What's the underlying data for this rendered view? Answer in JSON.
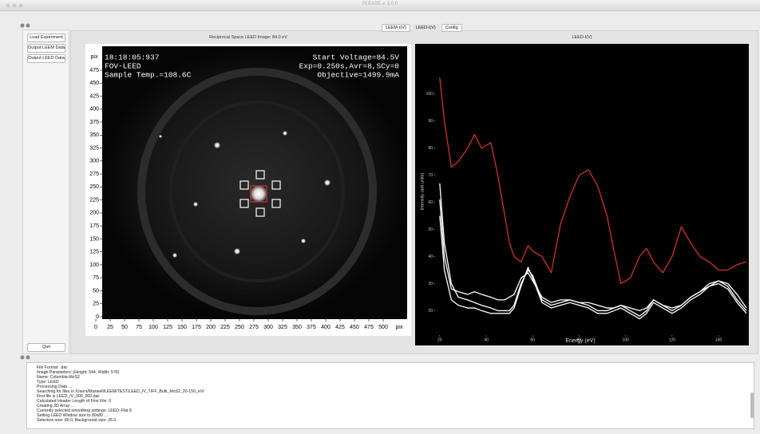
{
  "window": {
    "title": "PLEASE v. 1.0.0"
  },
  "sidebar": {
    "buttons": [
      "Load Experiment",
      "Output LEEM Data",
      "Output LEED Data"
    ],
    "quit": "Quit"
  },
  "tabs": [
    "LEEM-I(V)",
    "LEED-I(V)",
    "Config"
  ],
  "image_panel": {
    "title": "Reciprocal Space LEED Image: 84.0 eV",
    "overlay_left": [
      "18:18:05:937",
      "FOV-LEED",
      "Sample Temp.=108.6C"
    ],
    "overlay_right": [
      "Start Voltage=84.5V",
      "Exp=0.250s,Avr=8,SCy=0",
      "Objective=1499.9mA"
    ],
    "axis_unit": "pix",
    "xticks": [
      0,
      25,
      50,
      75,
      100,
      125,
      150,
      175,
      200,
      225,
      250,
      275,
      300,
      325,
      350,
      375,
      400,
      425,
      450,
      475,
      500
    ],
    "yticks": [
      0,
      25,
      50,
      75,
      100,
      125,
      150,
      175,
      200,
      225,
      250,
      275,
      300,
      325,
      350,
      375,
      400,
      425,
      450,
      475
    ]
  },
  "chart_data": {
    "type": "line",
    "title": "LEED-I(V)",
    "x_label": "Energy (eV)",
    "y_label": "Intensity (arb units)",
    "x": [
      20,
      22,
      25,
      28,
      32,
      35,
      38,
      42,
      45,
      48,
      50,
      52,
      55,
      58,
      60,
      64,
      68,
      72,
      76,
      80,
      84,
      88,
      92,
      95,
      98,
      102,
      106,
      109,
      112,
      116,
      120,
      124,
      128,
      132,
      136,
      140,
      144,
      148,
      152
    ],
    "series": [
      {
        "color": "#d0302a",
        "values": [
          106,
          90,
          73,
          75,
          80,
          85,
          80,
          82,
          70,
          55,
          45,
          40,
          38,
          44,
          42,
          40,
          34,
          52,
          62,
          70,
          72,
          66,
          55,
          42,
          30,
          32,
          40,
          43,
          38,
          34,
          40,
          51,
          45,
          40,
          38,
          35,
          35,
          37,
          38
        ]
      },
      {
        "color": "#ffffff",
        "values": [
          67,
          45,
          30,
          25,
          24,
          23,
          22,
          21,
          20,
          20,
          20,
          22,
          30,
          35,
          33,
          24,
          22,
          23,
          24,
          23,
          22,
          20,
          20,
          21,
          22,
          20,
          18,
          20,
          24,
          22,
          20,
          22,
          25,
          27,
          30,
          31,
          29,
          24,
          20
        ]
      },
      {
        "color": "#ffffff",
        "values": [
          61,
          40,
          28,
          27,
          26,
          27,
          26,
          25,
          24,
          24,
          25,
          26,
          32,
          34,
          31,
          25,
          23,
          24,
          24,
          23,
          23,
          22,
          21,
          21,
          22,
          21,
          20,
          21,
          24,
          22,
          21,
          22,
          25,
          27,
          29,
          31,
          30,
          26,
          21
        ]
      },
      {
        "color": "#ffffff",
        "values": [
          55,
          35,
          24,
          22,
          21,
          21,
          20,
          19,
          19,
          19,
          19,
          21,
          29,
          36,
          32,
          23,
          21,
          22,
          23,
          22,
          21,
          19,
          19,
          20,
          21,
          19,
          17,
          19,
          23,
          21,
          19,
          21,
          24,
          26,
          29,
          30,
          28,
          23,
          19
        ]
      }
    ],
    "xlim": [
      18,
      152
    ],
    "ylim": [
      11,
      117
    ],
    "xticks": [
      20,
      40,
      60,
      80,
      100,
      120,
      140
    ],
    "yticks": [
      20,
      30,
      40,
      50,
      60,
      70,
      80,
      90,
      100
    ]
  },
  "log": {
    "lines": [
      "File Format: .dat",
      "Image Parameters: {Height: 544, Width: 576}",
      "Name: Columbia-MoS2",
      "Type: LEED",
      "Processing Data ...",
      "Searching for files in /Users/Maxwell/LEEM/TEST/LEED_IV_TIFF_Bulk_MoS2_20-150_eV/",
      "First file is LEED_IV_000_000.dat.",
      "Calculated Header Length of First File: 0",
      "Creating 3D Array ...",
      "Currently selected smoothing settings: LEED: Flat 8",
      "Setting LEED Window size to 80x80 ...",
      "Selection size: 80.0, Background size: 26.0"
    ]
  }
}
